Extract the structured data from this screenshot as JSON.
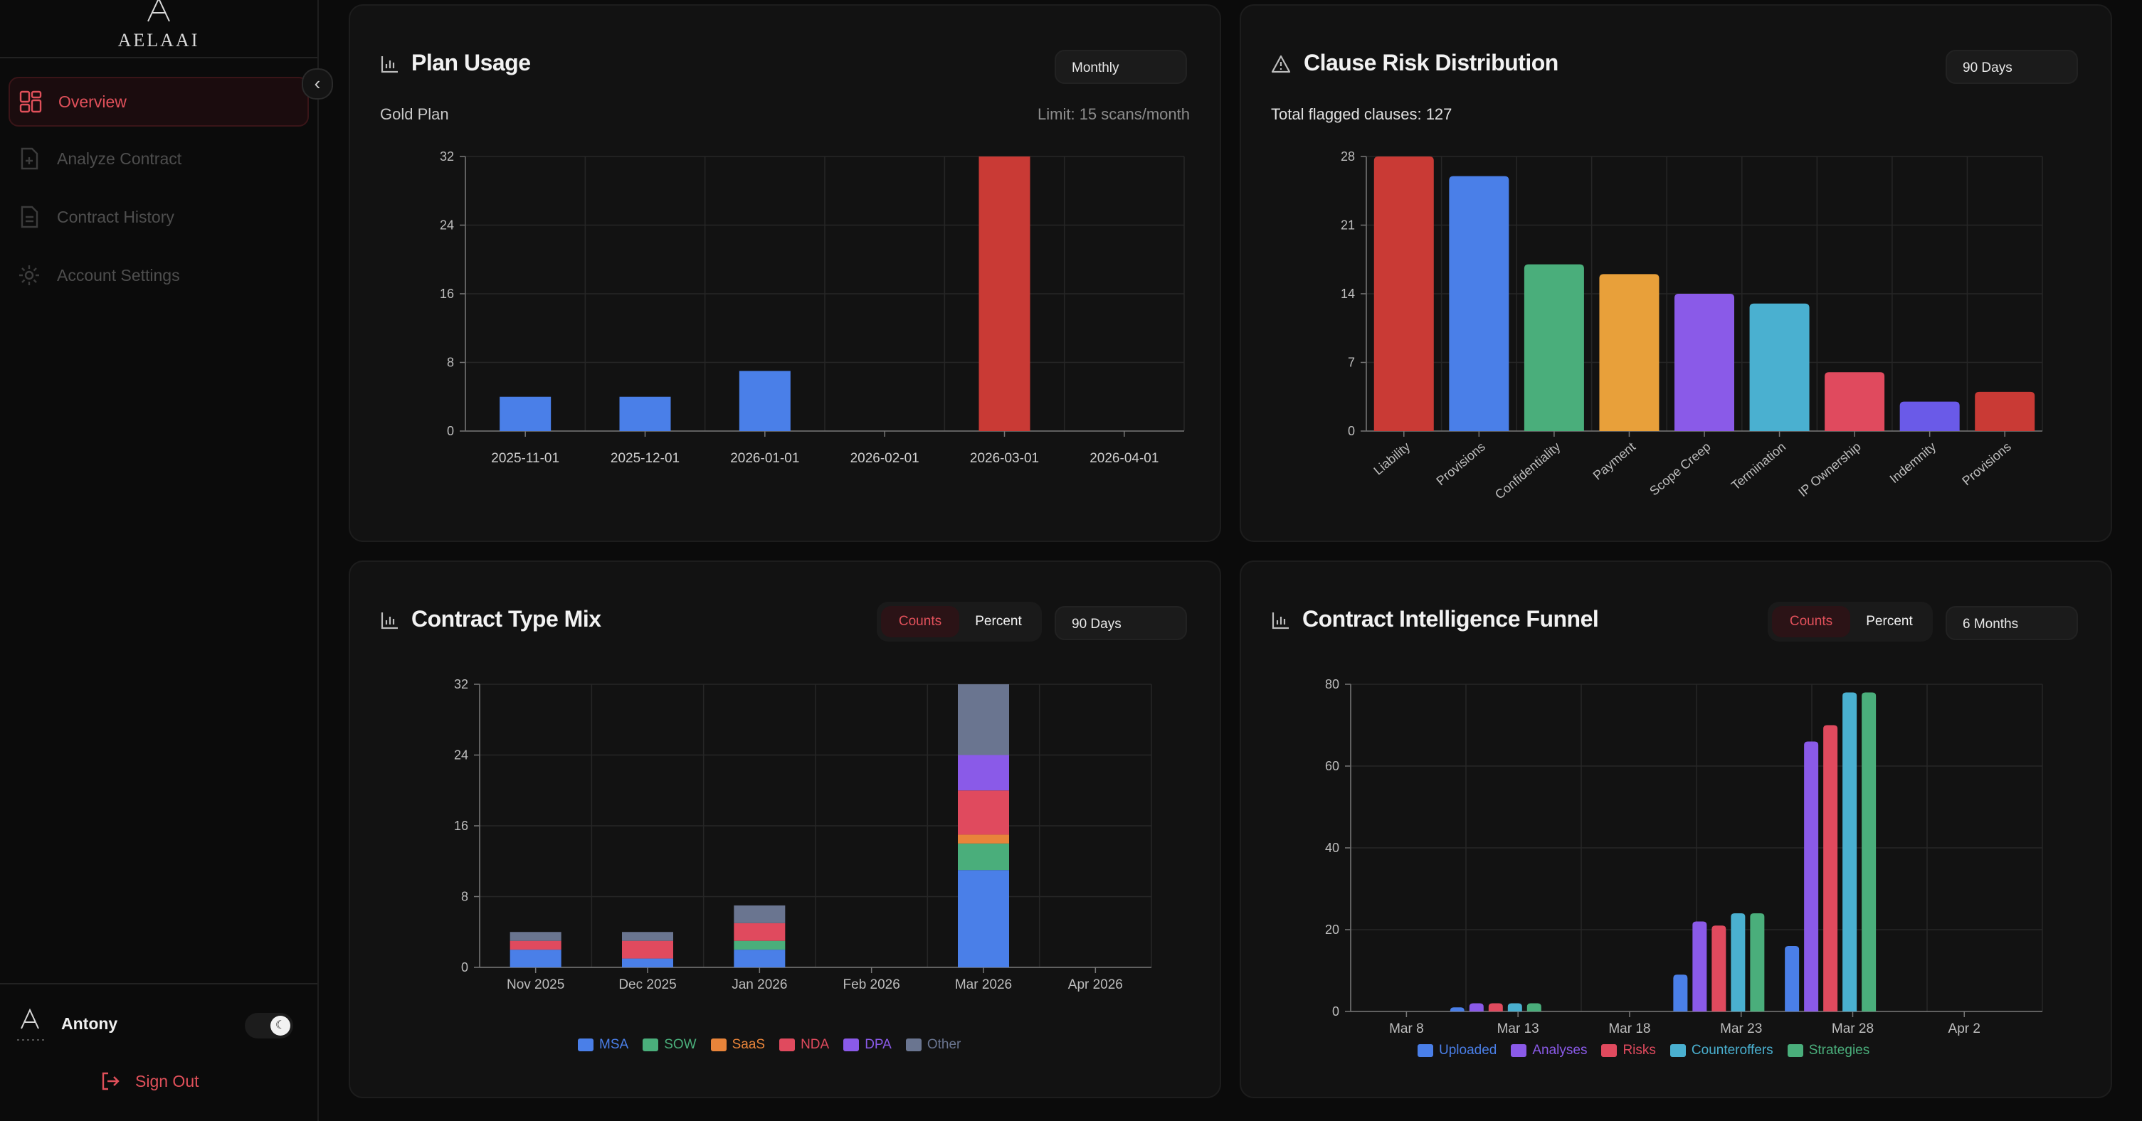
{
  "app": {
    "logo_text": "AELAAI"
  },
  "sidebar": {
    "items": [
      {
        "label": "Overview",
        "icon": "dashboard-icon",
        "active": true
      },
      {
        "label": "Analyze Contract",
        "icon": "document-plus-icon",
        "active": false
      },
      {
        "label": "Contract History",
        "icon": "document-list-icon",
        "active": false
      },
      {
        "label": "Account Settings",
        "icon": "gear-icon",
        "active": false
      }
    ],
    "user": {
      "name": "Antony"
    },
    "sign_out_label": "Sign Out"
  },
  "colors": {
    "accent": "#e0505a",
    "blue": "#4a7fe8",
    "red": "#c93a35",
    "green": "#4aae7b",
    "orange": "#e8a03a",
    "purple": "#8a5ae8",
    "teal": "#4ab0d0",
    "pink": "#e04a5e",
    "indigo": "#6a5ae8",
    "gray": "#6a7590"
  },
  "plan_usage": {
    "title": "Plan Usage",
    "period": "Monthly",
    "plan_name": "Gold Plan",
    "limit_text": "Limit: 15 scans/month",
    "chart_data": {
      "type": "bar",
      "categories": [
        "2025-11-01",
        "2025-12-01",
        "2026-01-01",
        "2026-02-01",
        "2026-03-01",
        "2026-04-01"
      ],
      "values": [
        4,
        4,
        7,
        0,
        32,
        0
      ],
      "colors": [
        "#4a7fe8",
        "#4a7fe8",
        "#4a7fe8",
        "#4a7fe8",
        "#c93a35",
        "#4a7fe8"
      ],
      "ylim": [
        0,
        32
      ],
      "yticks": [
        0,
        8,
        16,
        24,
        32
      ]
    }
  },
  "clause_risk": {
    "title": "Clause Risk Distribution",
    "period": "90 Days",
    "total_text": "Total flagged clauses: 127",
    "chart_data": {
      "type": "bar",
      "categories": [
        "Liability",
        "Provisions",
        "Confidentiality",
        "Payment",
        "Scope Creep",
        "Termination",
        "IP Ownership",
        "Indemnity",
        "Provisions"
      ],
      "values": [
        28,
        26,
        17,
        16,
        14,
        13,
        6,
        3,
        4
      ],
      "colors": [
        "#c93a35",
        "#4a7fe8",
        "#4aae7b",
        "#e8a03a",
        "#8a5ae8",
        "#4ab0d0",
        "#e04a5e",
        "#6a5ae8",
        "#c93a35"
      ],
      "ylim": [
        0,
        28
      ],
      "yticks": [
        0,
        7,
        14,
        21,
        28
      ]
    }
  },
  "contract_mix": {
    "title": "Contract Type Mix",
    "mode_counts": "Counts",
    "mode_percent": "Percent",
    "period": "90 Days",
    "chart_data": {
      "type": "bar",
      "stacked": true,
      "categories": [
        "Nov 2025",
        "Dec 2025",
        "Jan 2026",
        "Feb 2026",
        "Mar 2026",
        "Apr 2026"
      ],
      "series": [
        {
          "name": "MSA",
          "color": "#4a7fe8",
          "values": [
            2,
            1,
            2,
            0,
            11,
            0
          ]
        },
        {
          "name": "SOW",
          "color": "#4aae7b",
          "values": [
            0,
            0,
            1,
            0,
            3,
            0
          ]
        },
        {
          "name": "SaaS",
          "color": "#e8843a",
          "values": [
            0,
            0,
            0,
            0,
            1,
            0
          ]
        },
        {
          "name": "NDA",
          "color": "#e04a5e",
          "values": [
            1,
            2,
            2,
            0,
            5,
            0
          ]
        },
        {
          "name": "DPA",
          "color": "#8a5ae8",
          "values": [
            0,
            0,
            0,
            0,
            4,
            0
          ]
        },
        {
          "name": "Other",
          "color": "#6a7590",
          "values": [
            1,
            1,
            2,
            0,
            8,
            0
          ]
        }
      ],
      "ylim": [
        0,
        32
      ],
      "yticks": [
        0,
        8,
        16,
        24,
        32
      ]
    }
  },
  "funnel": {
    "title": "Contract Intelligence Funnel",
    "mode_counts": "Counts",
    "mode_percent": "Percent",
    "period": "6 Months",
    "chart_data": {
      "type": "bar",
      "x": [
        "Mar 8",
        "Mar 13",
        "Mar 18",
        "Mar 23",
        "Mar 28",
        "Apr 2"
      ],
      "groups": [
        {
          "x": "Mar 12",
          "values": [
            1,
            2,
            2,
            2,
            2
          ]
        },
        {
          "x": "Mar 22",
          "values": [
            9,
            22,
            21,
            24,
            24
          ]
        },
        {
          "x": "Mar 27",
          "values": [
            16,
            66,
            70,
            78,
            78
          ]
        }
      ],
      "series": [
        {
          "name": "Uploaded",
          "color": "#4a7fe8"
        },
        {
          "name": "Analyses",
          "color": "#8a5ae8"
        },
        {
          "name": "Risks",
          "color": "#e04a5e"
        },
        {
          "name": "Counteroffers",
          "color": "#4ab0d0"
        },
        {
          "name": "Strategies",
          "color": "#4aae7b"
        }
      ],
      "ylim": [
        0,
        80
      ],
      "yticks": [
        0,
        20,
        40,
        60,
        80
      ]
    }
  }
}
